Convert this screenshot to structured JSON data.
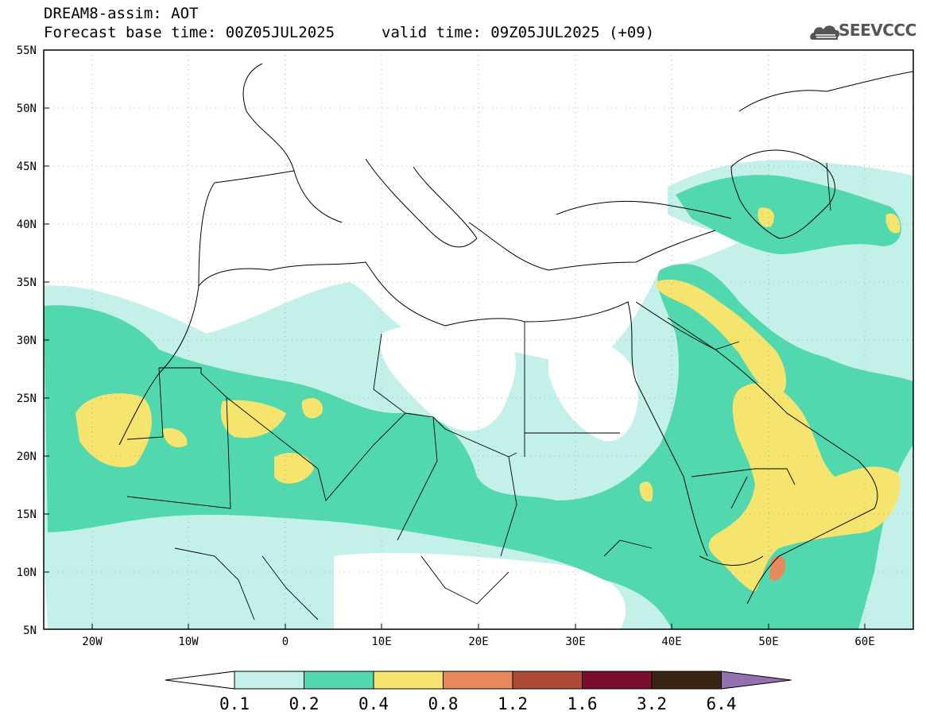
{
  "header": {
    "title": "DREAM8-assim: AOT",
    "base_time": "Forecast base time: 00Z05JUL2025",
    "valid_time": "valid time: 09Z05JUL2025 (+09)",
    "logo_text": "SEEVCCC"
  },
  "map": {
    "lon_range": [
      -25,
      65
    ],
    "lat_range": [
      5,
      55
    ],
    "lat_labels": [
      "55N",
      "50N",
      "45N",
      "40N",
      "35N",
      "30N",
      "25N",
      "20N",
      "15N",
      "10N",
      "5N"
    ],
    "lon_labels": [
      "20W",
      "10W",
      "0",
      "10E",
      "20E",
      "30E",
      "40E",
      "50E",
      "60E"
    ],
    "field": "AOT"
  },
  "legend": {
    "levels": [
      "0.1",
      "0.2",
      "0.4",
      "0.8",
      "1.2",
      "1.6",
      "3.2",
      "6.4"
    ],
    "colors": [
      "#ffffff",
      "#c4f0ea",
      "#52d8ae",
      "#f5e56e",
      "#e8895c",
      "#b04a38",
      "#7a0e2e",
      "#3a2414",
      "#9470b0"
    ]
  }
}
